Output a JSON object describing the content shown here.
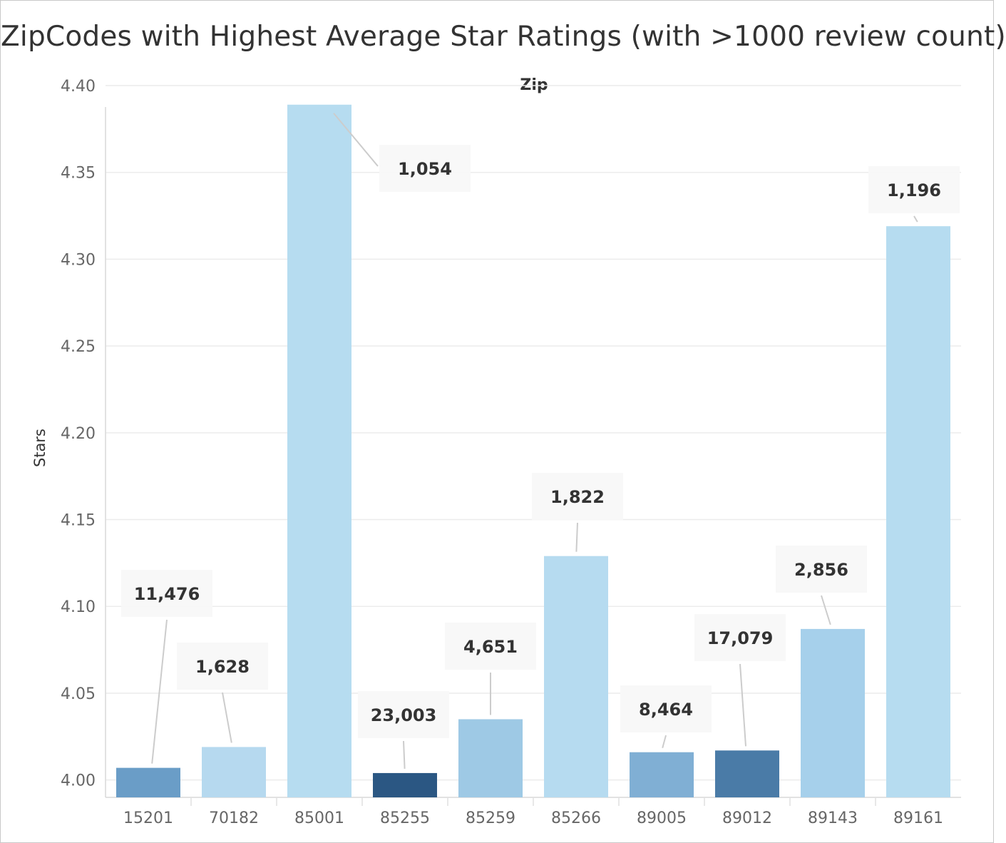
{
  "chart_data": {
    "type": "bar",
    "title": "ZipCodes with Highest Average Star Ratings (with >1000 review count)",
    "column_header": "Zip",
    "ylabel": "Stars",
    "ylim": [
      3.99,
      4.4
    ],
    "yticks": [
      "4.40",
      "4.35",
      "4.30",
      "4.25",
      "4.20",
      "4.15",
      "4.10",
      "4.05",
      "4.00"
    ],
    "yticks_values": [
      4.4,
      4.35,
      4.3,
      4.25,
      4.2,
      4.15,
      4.1,
      4.05,
      4.0
    ],
    "grid": "horizontal",
    "categories": [
      "15201",
      "70182",
      "85001",
      "85255",
      "85259",
      "85266",
      "89005",
      "89012",
      "89143",
      "89161"
    ],
    "values": [
      4.007,
      4.019,
      4.389,
      4.004,
      4.035,
      4.129,
      4.016,
      4.017,
      4.087,
      4.319
    ],
    "review_counts": [
      "11,476",
      "1,628",
      "1,054",
      "23,003",
      "4,651",
      "1,822",
      "8,464",
      "17,079",
      "2,856",
      "1,196"
    ],
    "bar_colors": [
      "#6a9dc7",
      "#b6d9ef",
      "#b6dcf0",
      "#2b5783",
      "#9ec9e5",
      "#b6dbf0",
      "#80afd4",
      "#4a7ba7",
      "#a6d0eb",
      "#b6dcf0"
    ]
  }
}
